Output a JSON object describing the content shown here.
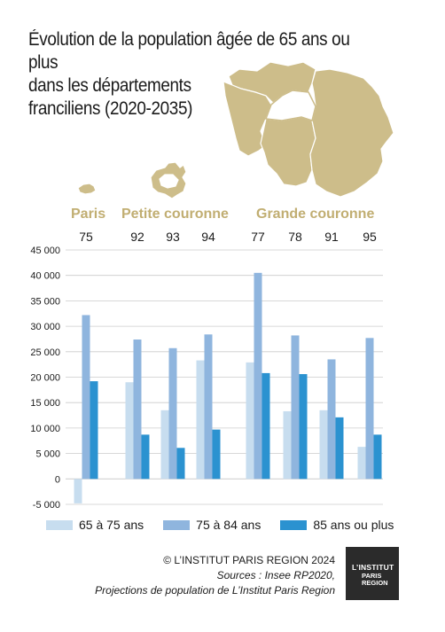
{
  "title": {
    "line1": "Évolution de la population âgée de 65 ans ou plus",
    "line2": "dans les départements",
    "line3": "franciliens (2020-2035)"
  },
  "colors": {
    "map_gold": "#cdbd8a",
    "group_label": "#c1ae72",
    "series_light": "#c7ddef",
    "series_mid": "#8fb5de",
    "series_dark": "#2b92d0",
    "grid": "#cccccc",
    "text": "#1a1a1a"
  },
  "groups": [
    {
      "label": "Paris"
    },
    {
      "label": "Petite couronne"
    },
    {
      "label": "Grande couronne"
    }
  ],
  "chart_data": {
    "type": "bar",
    "categories": [
      "75",
      "92",
      "93",
      "94",
      "77",
      "78",
      "91",
      "95"
    ],
    "category_groups": [
      "Paris",
      "Petite couronne",
      "Petite couronne",
      "Petite couronne",
      "Grande couronne",
      "Grande couronne",
      "Grande couronne",
      "Grande couronne"
    ],
    "series": [
      {
        "name": "65 à 75 ans",
        "values": [
          -4800,
          19000,
          13500,
          23300,
          22900,
          13300,
          13500,
          6300
        ]
      },
      {
        "name": "75 à 84 ans",
        "values": [
          32200,
          27400,
          25700,
          28400,
          40500,
          28200,
          23500,
          27700
        ]
      },
      {
        "name": "85 ans ou plus",
        "values": [
          19200,
          8700,
          6100,
          9700,
          20800,
          20600,
          12100,
          8700
        ]
      }
    ],
    "ylim": [
      -5000,
      45000
    ],
    "yticks": [
      "-5 000",
      "0",
      "5 000",
      "10 000",
      "15 000",
      "20 000",
      "25 000",
      "30 000",
      "35 000",
      "40 000",
      "45 000"
    ],
    "ytick_values": [
      -5000,
      0,
      5000,
      10000,
      15000,
      20000,
      25000,
      30000,
      35000,
      40000,
      45000
    ],
    "grid": true,
    "legend_position": "bottom"
  },
  "legend": {
    "items": [
      "65 à 75 ans",
      "75 à 84 ans",
      "85 ans ou plus"
    ]
  },
  "credits": {
    "line1": "© L’INSTITUT PARIS REGION 2024",
    "line2": "Sources : Insee RP2020,",
    "line3": "Projections de population de L’Institut Paris Region"
  },
  "logo": {
    "line1": "L’INSTITUT",
    "line2": "PARIS",
    "line3": "REGION"
  }
}
